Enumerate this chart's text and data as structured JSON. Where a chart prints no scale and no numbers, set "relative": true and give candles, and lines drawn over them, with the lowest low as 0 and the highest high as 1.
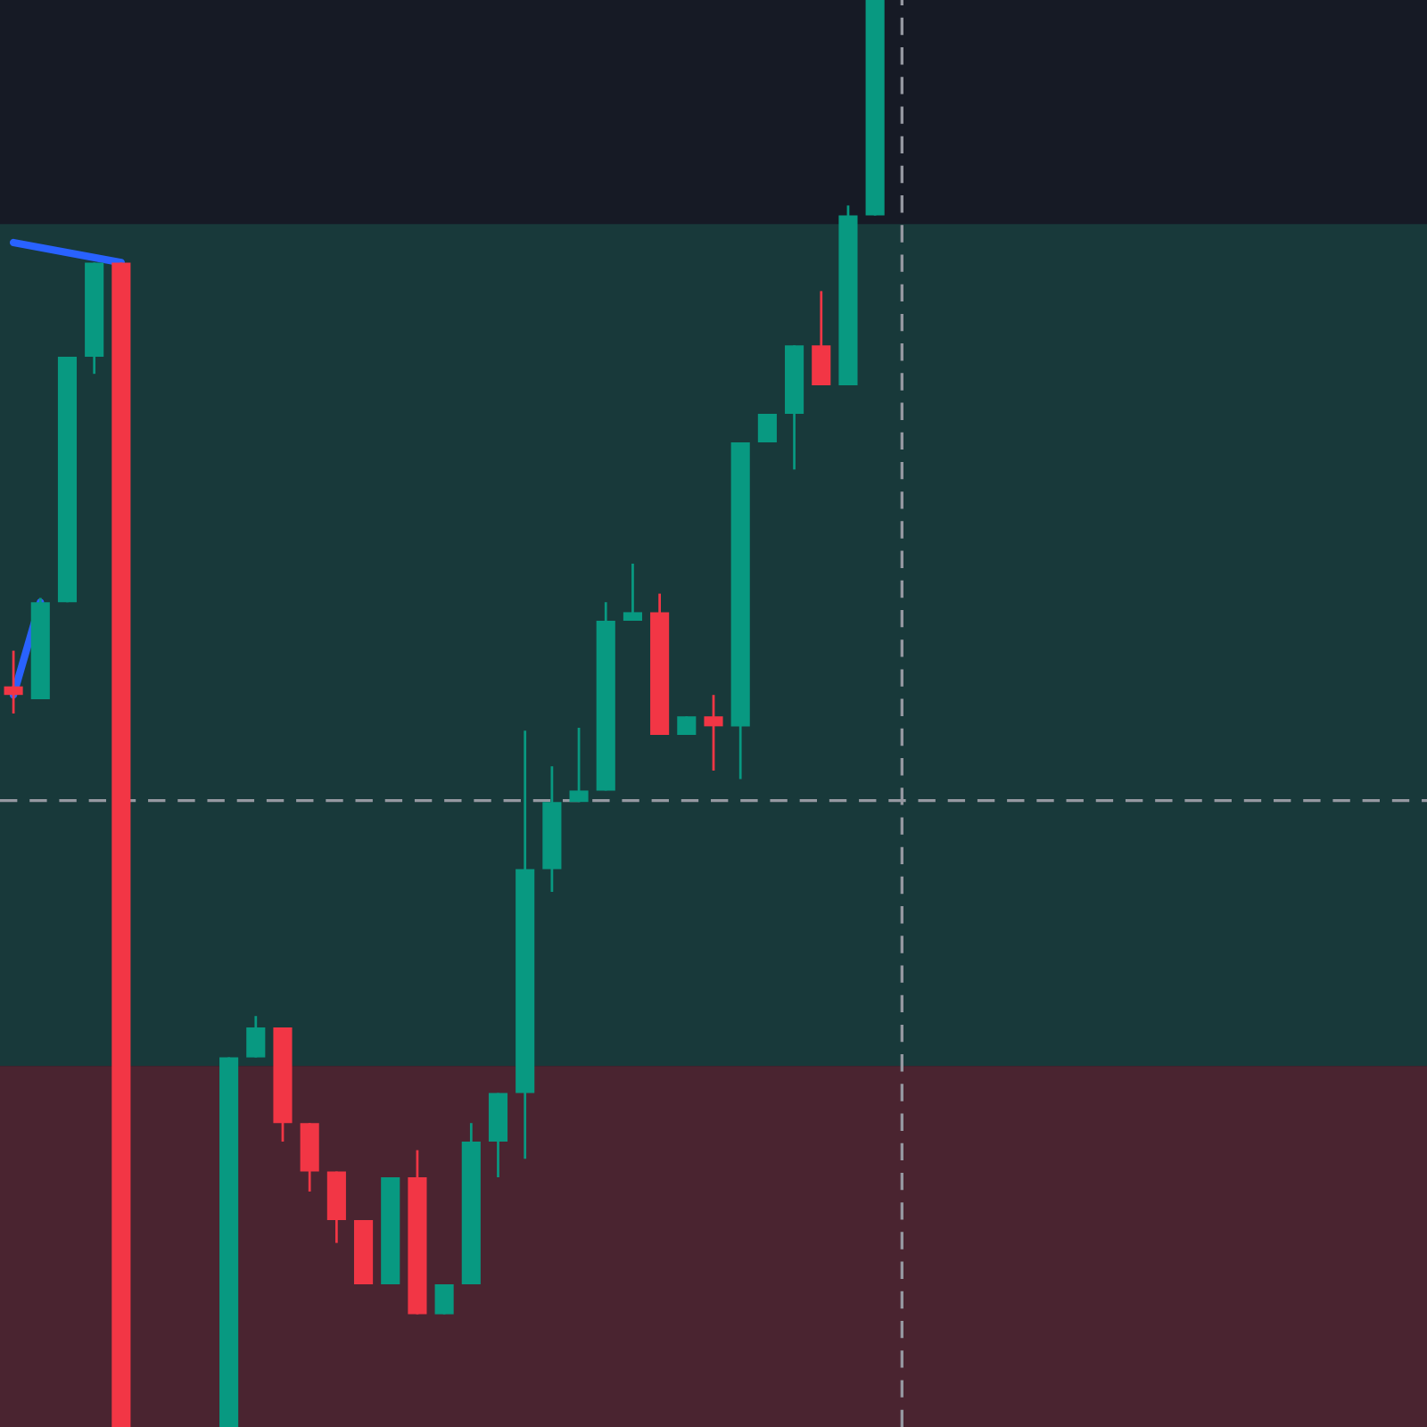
{
  "chart_data": {
    "type": "candlestick",
    "relative": true,
    "categories": [
      null,
      null,
      null,
      null,
      null,
      null,
      null,
      null,
      null,
      null,
      null,
      null,
      null,
      null,
      null,
      null,
      null,
      null,
      null,
      null,
      null,
      null,
      null,
      null,
      null,
      null,
      null,
      null,
      null,
      null,
      null,
      null,
      null,
      null,
      null,
      null,
      null,
      null,
      null,
      null,
      null,
      null,
      null,
      null,
      null,
      null,
      null,
      null,
      null,
      null,
      null,
      null,
      null
    ],
    "ohlc": [
      [
        0.519,
        0.544,
        0.5,
        0.513
      ],
      [
        0.51,
        0.581,
        0.51,
        0.578
      ],
      [
        0.578,
        0.75,
        0.578,
        0.75
      ],
      [
        0.75,
        0.816,
        0.738,
        0.816
      ],
      [
        0.816,
        0.816,
        0,
        0
      ],
      null,
      null,
      null,
      [
        0,
        0.259,
        0,
        0.259
      ],
      [
        0.259,
        0.288,
        0.259,
        0.28
      ],
      [
        0.28,
        0.28,
        0.2,
        0.213
      ],
      [
        0.213,
        0.213,
        0.165,
        0.179
      ],
      [
        0.179,
        0.179,
        0.129,
        0.145
      ],
      [
        0.145,
        0.145,
        0.1,
        0.1
      ],
      [
        0.1,
        0.175,
        0.1,
        0.175
      ],
      [
        0.175,
        0.194,
        0.079,
        0.079
      ],
      [
        0.079,
        0.1,
        0.079,
        0.1
      ],
      [
        0.1,
        0.213,
        0.1,
        0.2
      ],
      [
        0.2,
        0.234,
        0.175,
        0.234
      ],
      [
        0.234,
        0.488,
        0.188,
        0.391
      ],
      [
        0.391,
        0.463,
        0.375,
        0.438
      ],
      [
        0.438,
        0.49,
        0.438,
        0.446
      ],
      [
        0.446,
        0.578,
        0.446,
        0.565
      ],
      [
        0.565,
        0.605,
        0.565,
        0.571
      ],
      [
        0.571,
        0.584,
        0.485,
        0.485
      ],
      [
        0.485,
        0.498,
        0.485,
        0.498
      ],
      [
        0.498,
        0.513,
        0.46,
        0.491
      ],
      [
        0.491,
        0.69,
        0.454,
        0.69
      ],
      [
        0.69,
        0.71,
        0.69,
        0.71
      ],
      [
        0.71,
        0.758,
        0.671,
        0.758
      ],
      [
        0.758,
        0.796,
        0.73,
        0.73
      ],
      [
        0.73,
        0.856,
        0.73,
        0.849
      ],
      [
        0.849,
        1,
        0.849,
        1
      ],
      null,
      null,
      null,
      null,
      null,
      null,
      null,
      null,
      null,
      null,
      null,
      null,
      null,
      null,
      null,
      null,
      null,
      null,
      null,
      null
    ],
    "colors": [
      "#f23645",
      "#089981",
      "#089981",
      "#089981",
      "#f23645",
      null,
      null,
      null,
      "#089981",
      "#089981",
      "#f23645",
      "#f23645",
      "#f23645",
      "#f23645",
      "#089981",
      "#f23645",
      "#089981",
      "#089981",
      "#089981",
      "#089981",
      "#089981",
      "#089981",
      "#089981",
      "#089981",
      "#f23645",
      "#089981",
      "#f23645",
      "#089981",
      "#089981",
      "#089981",
      "#f23645",
      "#089981",
      "#089981",
      null,
      null,
      null,
      null,
      null,
      null,
      null,
      null,
      null,
      null,
      null,
      null,
      null,
      null,
      null,
      null,
      null,
      null,
      null,
      null
    ],
    "series": [
      {
        "type": "line",
        "color": "#2962ff",
        "values": [
          0.83,
          null,
          null,
          null,
          0.816,
          null,
          null,
          null,
          null,
          null,
          null,
          null,
          null,
          null,
          null,
          null,
          null,
          null,
          null,
          null,
          null,
          null,
          null,
          null,
          null,
          null,
          null,
          null,
          null,
          null,
          null,
          null,
          null,
          null,
          null,
          null,
          null,
          null,
          null,
          null,
          null,
          null,
          null,
          null,
          null,
          null,
          null,
          null,
          null,
          null,
          null,
          null,
          null
        ]
      },
      {
        "type": "line",
        "color": "#2962ff",
        "values": [
          0.513,
          0.578,
          null,
          null,
          null,
          null,
          null,
          null,
          null,
          null,
          null,
          null,
          null,
          null,
          null,
          null,
          null,
          null,
          null,
          null,
          null,
          null,
          null,
          null,
          null,
          null,
          null,
          null,
          null,
          null,
          null,
          null,
          null,
          null,
          null,
          null,
          null,
          null,
          null,
          null,
          null,
          null,
          null,
          null,
          null,
          null,
          null,
          null,
          null,
          null,
          null,
          null,
          null
        ]
      }
    ],
    "bands": [
      {
        "axis": "y",
        "from": 0.253,
        "to": 0.843,
        "color": "#18393a"
      },
      {
        "axis": "y",
        "from": 0,
        "to": 0.253,
        "color": "#4a2430"
      }
    ],
    "ref_lines": [
      {
        "axis": "y",
        "value": 0.439,
        "color": "#9598a1",
        "line_style": "dashed"
      }
    ]
  }
}
